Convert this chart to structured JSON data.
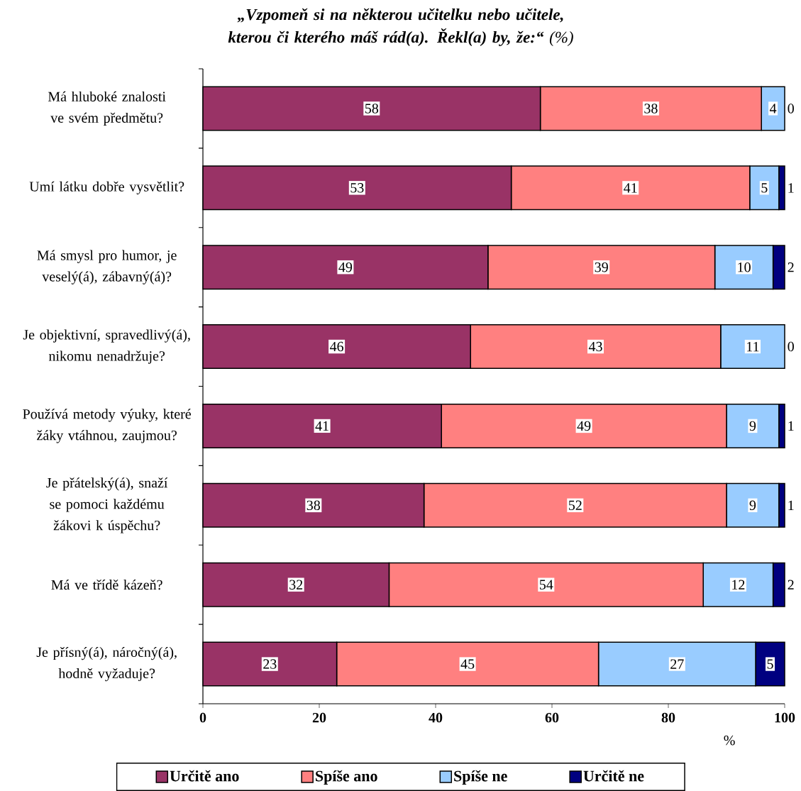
{
  "chart_data": {
    "type": "bar",
    "orientation": "horizontal",
    "stacked": true,
    "title": "**„Vzpomeň si na některou učitelku nebo učitele, kterou či kterého máš rád(a). Řekl(a) by, že:“** (%)",
    "xlabel": "%",
    "categories": [
      "Má hluboké znalosti ve svém předmětu?",
      "Umí látku dobře vysvětlit?",
      "Má smysl pro humor, je veselý(á), zábavný(á)?",
      "Je objektivní, spravedlivý(á), nikomu nenadržuje?",
      "Používá metody výuky, které žáky vtáhnou, zaujmou?",
      "Je přátelský(á), snaží se pomoci každému žákovi k úspěchu?",
      "Má ve třídě kázeň?",
      "Je přísný(á), náročný(á), hodně vyžaduje?"
    ],
    "series": [
      {
        "name": "Určitě ano",
        "color": "#993366",
        "values": [
          58,
          53,
          49,
          46,
          41,
          38,
          32,
          23
        ]
      },
      {
        "name": "Spíše ano",
        "color": "#ff8080",
        "values": [
          38,
          41,
          39,
          43,
          49,
          52,
          54,
          45
        ]
      },
      {
        "name": "Spíše ne",
        "color": "#99ccff",
        "values": [
          4,
          5,
          10,
          11,
          9,
          9,
          12,
          27
        ]
      },
      {
        "name": "Určitě ne",
        "color": "#000080",
        "values": [
          0,
          1,
          2,
          0,
          1,
          1,
          2,
          5
        ]
      }
    ],
    "xlim": [
      0,
      100
    ],
    "xticks": [
      0,
      20,
      40,
      60,
      80,
      100
    ],
    "data_labels": true,
    "legend": "bottom",
    "grid": false
  }
}
